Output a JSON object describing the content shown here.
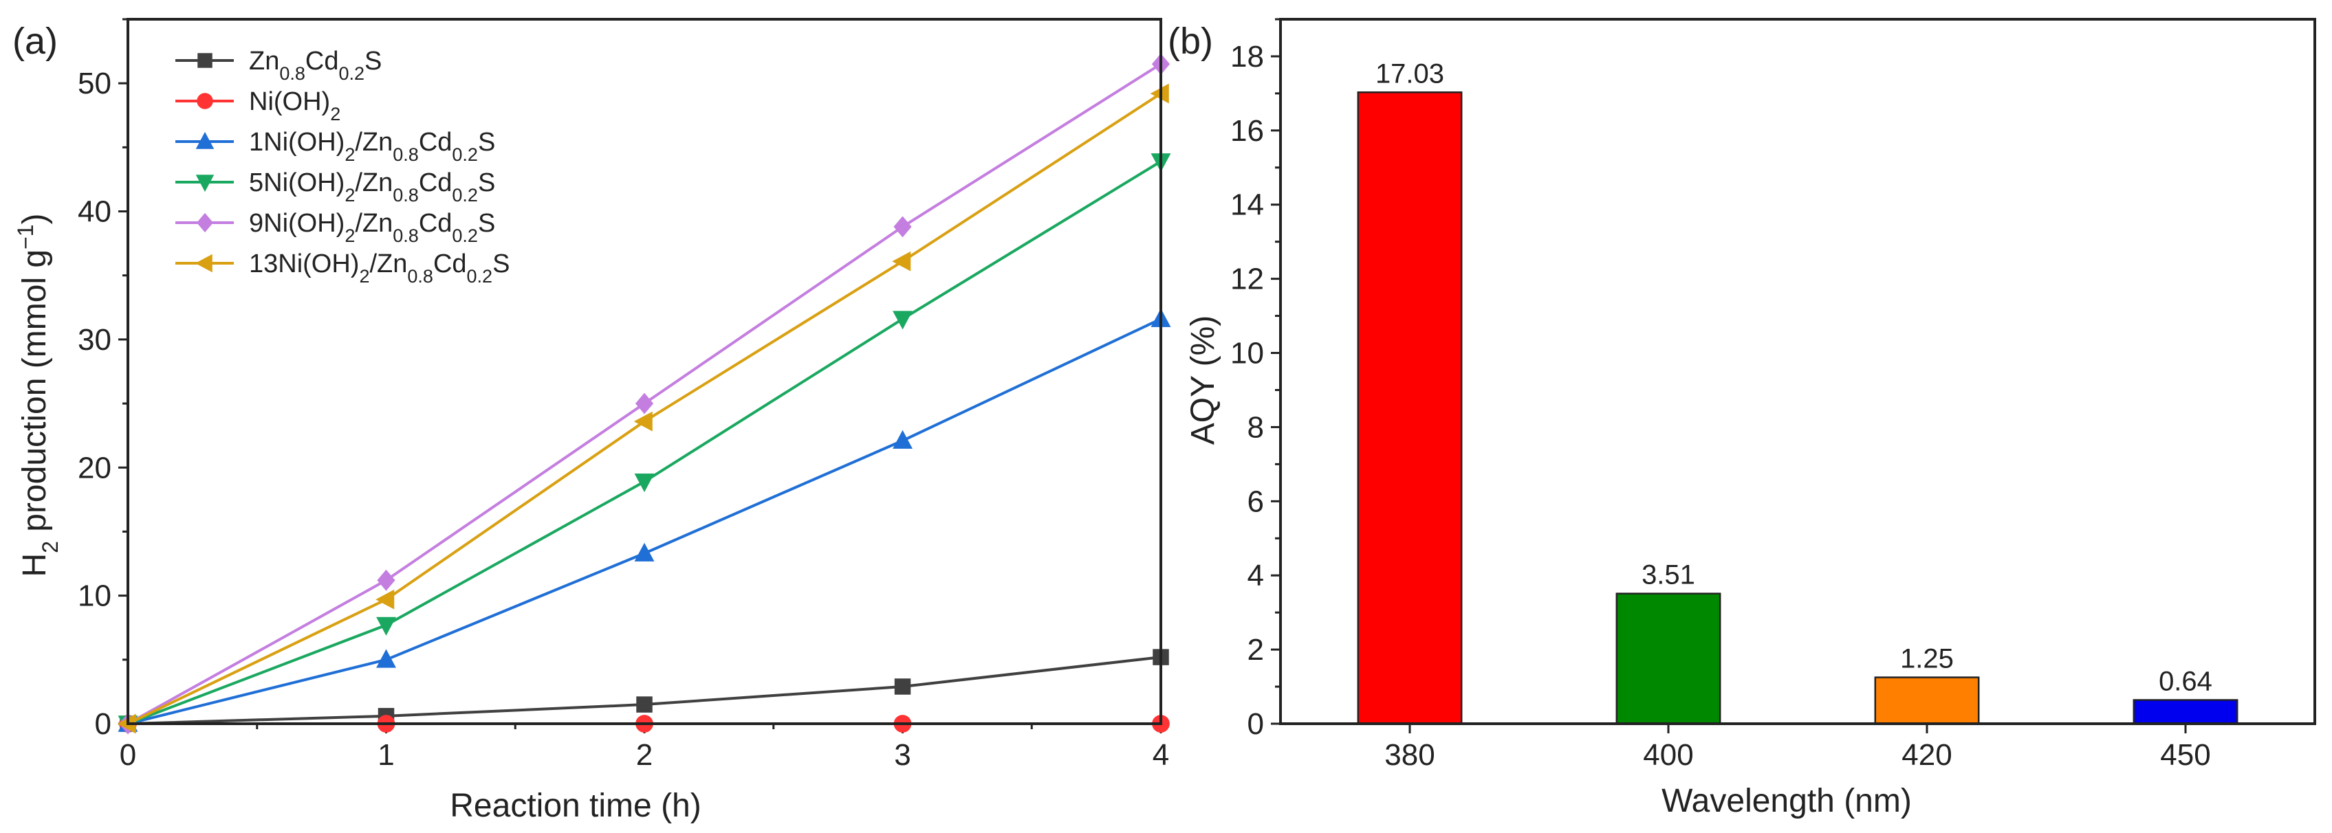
{
  "panels": [
    {
      "label": "(a)",
      "chart_data": {
        "type": "line",
        "xlabel": "Reaction time (h)",
        "ylabel": {
          "prefix": "H",
          "sub": "2",
          "middle": " production (mmol g",
          "sup": "−1",
          "suffix": ")"
        },
        "xlim": [
          0,
          4
        ],
        "ylim": [
          0,
          55
        ],
        "x_ticks": [
          0,
          1,
          2,
          3,
          4
        ],
        "y_ticks": [
          0,
          10,
          20,
          30,
          40,
          50
        ],
        "legend_position": "top-left",
        "series": [
          {
            "name": "Zn0.8Cd0.2S",
            "name_parts": [
              {
                "t": "Zn"
              },
              {
                "t": "0.8",
                "sub": true
              },
              {
                "t": "Cd"
              },
              {
                "t": "0.2",
                "sub": true
              },
              {
                "t": "S"
              }
            ],
            "color": "#404040",
            "marker": "square",
            "x": [
              0,
              1,
              2,
              3,
              4
            ],
            "y": [
              0,
              0.6,
              1.5,
              2.9,
              5.2
            ]
          },
          {
            "name": "Ni(OH)2",
            "name_parts": [
              {
                "t": "Ni(OH)"
              },
              {
                "t": "2",
                "sub": true
              }
            ],
            "color": "#ff3333",
            "marker": "circle",
            "x": [
              0,
              1,
              2,
              3,
              4
            ],
            "y": [
              0,
              0,
              0,
              0,
              0
            ]
          },
          {
            "name": "1Ni(OH)2/Zn0.8Cd0.2S",
            "name_parts": [
              {
                "t": "1Ni(OH)"
              },
              {
                "t": "2",
                "sub": true
              },
              {
                "t": "/Zn"
              },
              {
                "t": "0.8",
                "sub": true
              },
              {
                "t": "Cd"
              },
              {
                "t": "0.2",
                "sub": true
              },
              {
                "t": "S"
              }
            ],
            "color": "#1f6fd6",
            "marker": "triangle-up",
            "x": [
              0,
              1,
              2,
              3,
              4
            ],
            "y": [
              0,
              5.0,
              13.3,
              22.1,
              31.6
            ]
          },
          {
            "name": "5Ni(OH)2/Zn0.8Cd0.2S",
            "name_parts": [
              {
                "t": "5Ni(OH)"
              },
              {
                "t": "2",
                "sub": true
              },
              {
                "t": "/Zn"
              },
              {
                "t": "0.8",
                "sub": true
              },
              {
                "t": "Cd"
              },
              {
                "t": "0.2",
                "sub": true
              },
              {
                "t": "S"
              }
            ],
            "color": "#1aa860",
            "marker": "triangle-down",
            "x": [
              0,
              1,
              2,
              3,
              4
            ],
            "y": [
              0,
              7.7,
              18.9,
              31.6,
              43.9
            ]
          },
          {
            "name": "9Ni(OH)2/Zn0.8Cd0.2S",
            "name_parts": [
              {
                "t": "9Ni(OH)"
              },
              {
                "t": "2",
                "sub": true
              },
              {
                "t": "/Zn"
              },
              {
                "t": "0.8",
                "sub": true
              },
              {
                "t": "Cd"
              },
              {
                "t": "0.2",
                "sub": true
              },
              {
                "t": "S"
              }
            ],
            "color": "#c47ee0",
            "marker": "diamond",
            "x": [
              0,
              1,
              2,
              3,
              4
            ],
            "y": [
              0,
              11.2,
              25.0,
              38.8,
              51.5
            ]
          },
          {
            "name": "13Ni(OH)2/Zn0.8Cd0.2S",
            "name_parts": [
              {
                "t": "13Ni(OH)"
              },
              {
                "t": "2",
                "sub": true
              },
              {
                "t": "/Zn"
              },
              {
                "t": "0.8",
                "sub": true
              },
              {
                "t": "Cd"
              },
              {
                "t": "0.2",
                "sub": true
              },
              {
                "t": "S"
              }
            ],
            "color": "#d9a012",
            "marker": "triangle-left",
            "x": [
              0,
              1,
              2,
              3,
              4
            ],
            "y": [
              0,
              9.7,
              23.6,
              36.1,
              49.2
            ]
          }
        ]
      }
    },
    {
      "label": "(b)",
      "chart_data": {
        "type": "bar",
        "xlabel": "Wavelength (nm)",
        "ylabel": "AQY (%)",
        "categories": [
          "380",
          "400",
          "420",
          "450"
        ],
        "values": [
          17.03,
          3.51,
          1.25,
          0.64
        ],
        "data_labels": [
          "17.03",
          "3.51",
          "1.25",
          "0.64"
        ],
        "colors": [
          "#ff0000",
          "#008800",
          "#ff8000",
          "#0000ee"
        ],
        "ylim": [
          0,
          19
        ],
        "y_ticks": [
          0,
          2,
          4,
          6,
          8,
          10,
          12,
          14,
          16,
          18
        ]
      }
    }
  ]
}
